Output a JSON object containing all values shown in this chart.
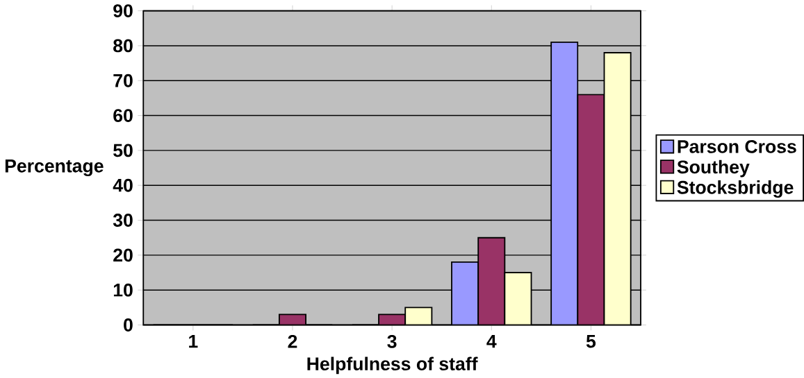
{
  "chart_data": {
    "type": "bar",
    "xlabel": "Helpfulness of staff",
    "ylabel": "Percentage",
    "categories": [
      "1",
      "2",
      "3",
      "4",
      "5"
    ],
    "series": [
      {
        "name": "Parson Cross",
        "color": "#9999ff",
        "values": [
          0,
          0,
          0,
          18,
          81
        ]
      },
      {
        "name": "Southey",
        "color": "#993366",
        "values": [
          0,
          3,
          3,
          25,
          66
        ]
      },
      {
        "name": "Stocksbridge",
        "color": "#ffffcc",
        "values": [
          0,
          0,
          5,
          15,
          78
        ]
      }
    ],
    "ylim": [
      0,
      90
    ],
    "yticks": [
      0,
      10,
      20,
      30,
      40,
      50,
      60,
      70,
      80,
      90
    ],
    "grid": "y",
    "legend": "right"
  }
}
